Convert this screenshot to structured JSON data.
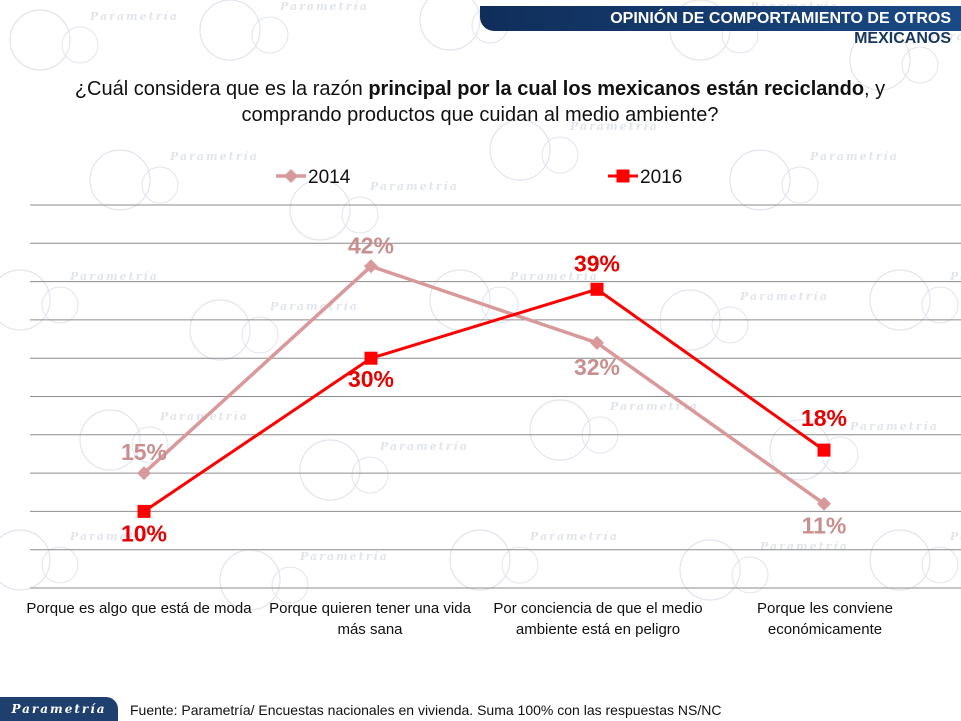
{
  "header": {
    "title_line1": "OPINIÓN DE COMPORTAMIENTO DE OTROS",
    "title_line2": "MEXICANOS"
  },
  "question": {
    "part1": "¿Cuál considera que es la razón ",
    "bold": "principal por la cual los mexicanos están reciclando",
    "part2": ", y comprando productos que cuidan al medio ambiente?"
  },
  "watermark_text": "Parametría",
  "colors": {
    "header_bg": "#163e73",
    "series_2014": "#d9999b",
    "series_2016": "#ff0000",
    "label_2014": "#c98f8f",
    "label_2016": "#e60000"
  },
  "chart_data": {
    "type": "line",
    "categories": [
      "Porque es algo que está de moda",
      "Porque quieren tener una vida más sana",
      "Por conciencia de que el medio ambiente está en peligro",
      "Porque les conviene económicamente"
    ],
    "series": [
      {
        "name": "2014",
        "values": [
          15,
          42,
          32,
          11
        ],
        "labels": [
          "15%",
          "42%",
          "32%",
          "11%"
        ],
        "marker": "diamond"
      },
      {
        "name": "2016",
        "values": [
          10,
          30,
          39,
          18
        ],
        "labels": [
          "10%",
          "30%",
          "39%",
          "18%"
        ],
        "marker": "square"
      }
    ],
    "unit": "%",
    "ylim": [
      0,
      50
    ],
    "grid": true,
    "legend": "top"
  },
  "footer": {
    "logo": "Parametría",
    "source": "Fuente: Parametría/ Encuestas nacionales en vivienda. Suma 100% con las respuestas NS/NC"
  }
}
